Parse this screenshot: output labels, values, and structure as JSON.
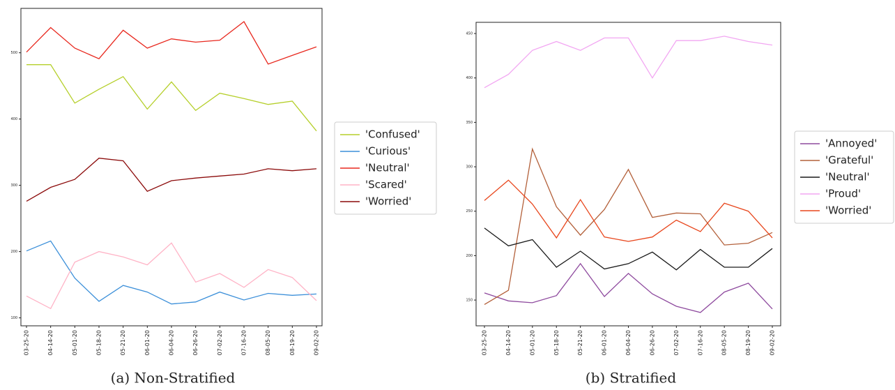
{
  "chart_data": [
    {
      "type": "line",
      "caption": "(a) Non-Stratified",
      "legend": "right",
      "categories": [
        "03-25-20",
        "04-14-20",
        "05-01-20",
        "05-18-20",
        "05-21-20",
        "06-01-20",
        "06-04-20",
        "06-26-20",
        "07-02-20",
        "07-16-20",
        "08-05-20",
        "08-19-20",
        "09-02-20"
      ],
      "ylim": [
        88,
        567
      ],
      "yticks": [
        100,
        200,
        300,
        400,
        500
      ],
      "series": [
        {
          "name": "'Confused'",
          "color": "#b5cf2a",
          "values": [
            482,
            482,
            424,
            445,
            464,
            415,
            456,
            413,
            439,
            431,
            422,
            427,
            382
          ]
        },
        {
          "name": "'Curious'",
          "color": "#3b8fd9",
          "values": [
            201,
            216,
            160,
            125,
            149,
            139,
            121,
            124,
            139,
            127,
            137,
            134,
            136
          ]
        },
        {
          "name": "'Neutral'",
          "color": "#e8281e",
          "values": [
            501,
            538,
            507,
            491,
            534,
            507,
            521,
            516,
            519,
            547,
            483,
            496,
            509
          ]
        },
        {
          "name": "'Scared'",
          "color": "#ffb3c6",
          "values": [
            133,
            114,
            184,
            200,
            192,
            180,
            213,
            154,
            167,
            146,
            173,
            161,
            126
          ]
        },
        {
          "name": "'Worried'",
          "color": "#8b0a0a",
          "values": [
            276,
            297,
            309,
            341,
            337,
            291,
            307,
            311,
            314,
            317,
            325,
            322,
            325
          ]
        }
      ]
    },
    {
      "type": "line",
      "caption": "(b) Stratified",
      "legend": "right",
      "categories": [
        "03-25-20",
        "04-14-20",
        "05-01-20",
        "05-18-20",
        "05-21-20",
        "06-01-20",
        "06-04-20",
        "06-26-20",
        "07-02-20",
        "07-16-20",
        "08-05-20",
        "08-19-20",
        "09-02-20"
      ],
      "ylim": [
        121,
        462.6
      ],
      "yticks": [
        150,
        200,
        250,
        300,
        350,
        400,
        450
      ],
      "series": [
        {
          "name": "'Annoyed'",
          "color": "#8e4a9e",
          "values": [
            158,
            149,
            147,
            155,
            191,
            154,
            180,
            157,
            143,
            136,
            159,
            169,
            140
          ]
        },
        {
          "name": "'Grateful'",
          "color": "#b3603a",
          "values": [
            145,
            161,
            320,
            255,
            223,
            252,
            297,
            243,
            248,
            247,
            212,
            214,
            226
          ]
        },
        {
          "name": "'Neutral'",
          "color": "#1a1a1a",
          "values": [
            231,
            211,
            218,
            187,
            205,
            185,
            191,
            204,
            184,
            207,
            187,
            187,
            208
          ]
        },
        {
          "name": "'Proud'",
          "color": "#f2a6f2",
          "values": [
            389,
            404,
            431,
            441,
            431,
            445,
            445,
            400,
            442,
            442,
            447,
            441,
            437
          ]
        },
        {
          "name": "'Worried'",
          "color": "#e8461c",
          "values": [
            262,
            285,
            258,
            220,
            263,
            221,
            216,
            221,
            240,
            227,
            259,
            250,
            220
          ]
        }
      ]
    }
  ]
}
